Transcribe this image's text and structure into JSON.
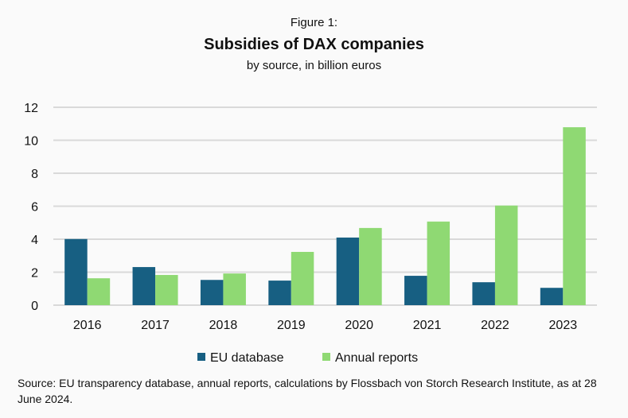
{
  "chart_data": {
    "type": "bar",
    "pretitle": "Figure 1:",
    "title": "Subsidies of DAX companies",
    "subtitle": "by source, in billion euros",
    "categories": [
      "2016",
      "2017",
      "2018",
      "2019",
      "2020",
      "2021",
      "2022",
      "2023"
    ],
    "series": [
      {
        "name": "EU database",
        "color": "#175f82",
        "values": [
          4.01,
          2.31,
          1.53,
          1.49,
          4.1,
          1.78,
          1.39,
          1.05
        ]
      },
      {
        "name": "Annual reports",
        "color": "#8fd973",
        "values": [
          1.63,
          1.83,
          1.92,
          3.23,
          4.68,
          5.07,
          6.04,
          10.79
        ]
      }
    ],
    "ylim": [
      0,
      12
    ],
    "yticks": [
      "0",
      "2",
      "4",
      "6",
      "8",
      "10",
      "12"
    ],
    "grid": true,
    "legend": "bottom",
    "xlabel": "",
    "ylabel": ""
  },
  "source": "Source: EU transparency database, annual reports, calculations by Flossbach von Storch Research Institute, as at 28 June 2024."
}
